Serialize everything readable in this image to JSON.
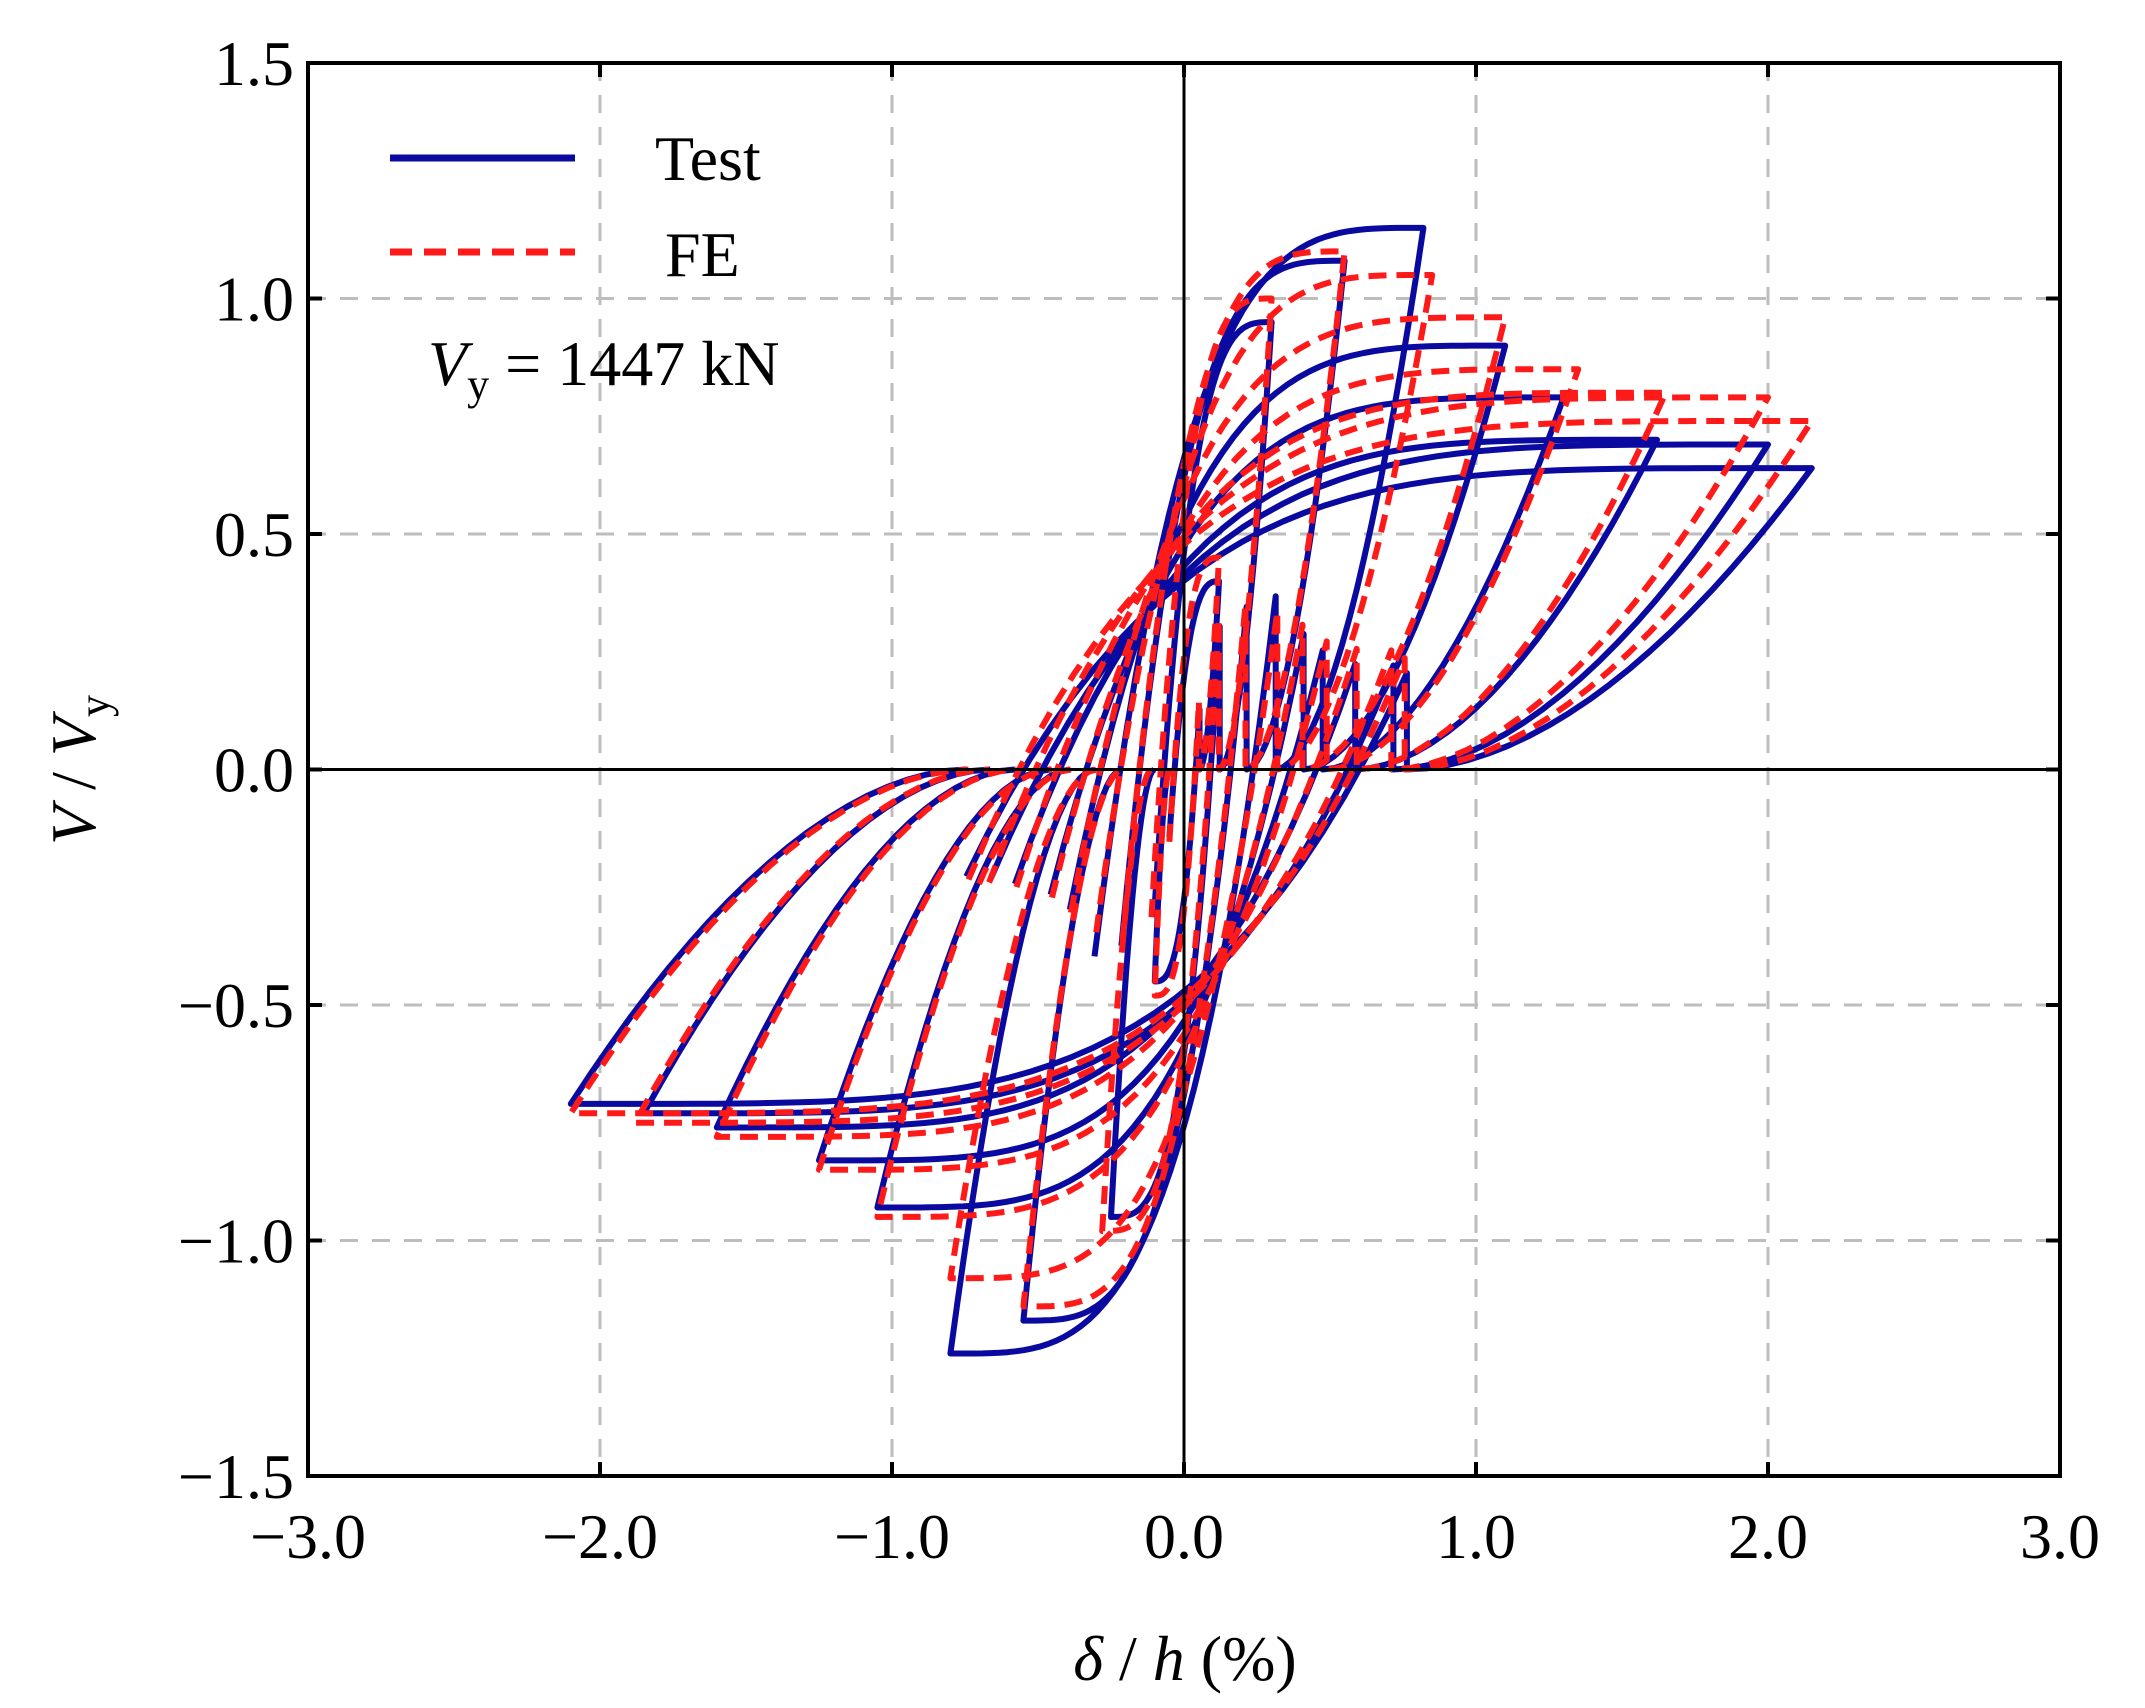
{
  "chart_data": {
    "type": "line",
    "title": "",
    "xlabel": {
      "delta": "δ",
      "slash": " / ",
      "h": "h",
      "unit": " (%)"
    },
    "ylabel": {
      "V": "V",
      "slash": " / ",
      "Vy": "V",
      "sub": "y"
    },
    "xlim": [
      -3.0,
      3.0
    ],
    "ylim": [
      -1.5,
      1.5
    ],
    "xticks": [
      -3.0,
      -2.0,
      -1.0,
      0.0,
      1.0,
      2.0,
      3.0
    ],
    "yticks": [
      -1.5,
      -1.0,
      -0.5,
      0.0,
      0.5,
      1.0,
      1.5
    ],
    "xtick_labels": [
      "−3.0",
      "−2.0",
      "−1.0",
      "0.0",
      "1.0",
      "2.0",
      "3.0"
    ],
    "ytick_labels": [
      "−1.5",
      "−1.0",
      "−0.5",
      "0.0",
      "0.5",
      "1.0",
      "1.5"
    ],
    "grid": true,
    "legend_position": "top-left",
    "annotation": {
      "V": "V",
      "sub": "y",
      "text": " = 1447 kN"
    },
    "series": [
      {
        "name": "Test",
        "color": "#0a0aa0",
        "style": "solid",
        "cycles": [
          {
            "pos": [
              0.12,
              0.4
            ],
            "neg": [
              -0.1,
              -0.45
            ],
            "k": 0.55
          },
          {
            "pos": [
              0.3,
              0.95
            ],
            "neg": [
              -0.25,
              -0.95
            ],
            "k": 0.45
          },
          {
            "pos": [
              0.55,
              1.08
            ],
            "neg": [
              -0.55,
              -1.17
            ],
            "k": 0.4
          },
          {
            "pos": [
              0.82,
              1.15
            ],
            "neg": [
              -0.8,
              -1.24
            ],
            "k": 0.38
          },
          {
            "pos": [
              1.1,
              0.9
            ],
            "neg": [
              -1.05,
              -0.93
            ],
            "k": 0.35
          },
          {
            "pos": [
              1.3,
              0.79
            ],
            "neg": [
              -1.25,
              -0.83
            ],
            "k": 0.33
          },
          {
            "pos": [
              1.62,
              0.7
            ],
            "neg": [
              -1.6,
              -0.76
            ],
            "k": 0.32
          },
          {
            "pos": [
              2.0,
              0.69
            ],
            "neg": [
              -1.85,
              -0.73
            ],
            "k": 0.31
          },
          {
            "pos": [
              2.15,
              0.64
            ],
            "neg": [
              -2.1,
              -0.71
            ],
            "k": 0.3
          }
        ]
      },
      {
        "name": "FE",
        "color": "#ff1a1a",
        "style": "dashed",
        "cycles": [
          {
            "pos": [
              0.12,
              0.45
            ],
            "neg": [
              -0.1,
              -0.48
            ],
            "k": 0.5
          },
          {
            "pos": [
              0.3,
              1.0
            ],
            "neg": [
              -0.28,
              -0.98
            ],
            "k": 0.42
          },
          {
            "pos": [
              0.55,
              1.1
            ],
            "neg": [
              -0.55,
              -1.14
            ],
            "k": 0.38
          },
          {
            "pos": [
              0.85,
              1.05
            ],
            "neg": [
              -0.8,
              -1.08
            ],
            "k": 0.36
          },
          {
            "pos": [
              1.1,
              0.96
            ],
            "neg": [
              -1.05,
              -0.95
            ],
            "k": 0.34
          },
          {
            "pos": [
              1.35,
              0.85
            ],
            "neg": [
              -1.25,
              -0.85
            ],
            "k": 0.32
          },
          {
            "pos": [
              1.65,
              0.8
            ],
            "neg": [
              -1.6,
              -0.78
            ],
            "k": 0.31
          },
          {
            "pos": [
              2.0,
              0.79
            ],
            "neg": [
              -1.88,
              -0.75
            ],
            "k": 0.3
          },
          {
            "pos": [
              2.15,
              0.74
            ],
            "neg": [
              -2.1,
              -0.73
            ],
            "k": 0.29
          }
        ]
      }
    ]
  }
}
